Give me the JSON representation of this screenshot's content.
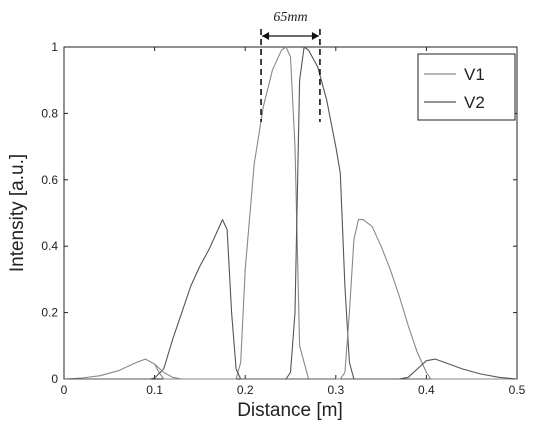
{
  "chart_data": {
    "type": "line",
    "xlabel": "Distance [m]",
    "ylabel": "Intensity [a.u.]",
    "xlim": [
      0,
      0.5
    ],
    "ylim": [
      0,
      1
    ],
    "xticks": [
      "0",
      "0.1",
      "0.2",
      "0.3",
      "0.4",
      "0.5"
    ],
    "yticks": [
      "0",
      "0.2",
      "0.4",
      "0.6",
      "0.8",
      "1"
    ],
    "grid": false,
    "legend_position": "top-right",
    "annotation": {
      "text": "65mm",
      "x_start": 0.2175,
      "x_end": 0.2825
    },
    "series": [
      {
        "name": "V1",
        "color": "#888888",
        "x": [
          0,
          0.02,
          0.04,
          0.06,
          0.08,
          0.09,
          0.1,
          0.105,
          0.11,
          0.12,
          0.13,
          0.14,
          0.15,
          0.16,
          0.17,
          0.175,
          0.18,
          0.185,
          0.19,
          0.195,
          0.2,
          0.21,
          0.22,
          0.23,
          0.24,
          0.245,
          0.25,
          0.255,
          0.26,
          0.27,
          0.28,
          0.29,
          0.3,
          0.305,
          0.31,
          0.315,
          0.32,
          0.33,
          0.34,
          0.35,
          0.36,
          0.37,
          0.38,
          0.39,
          0.4,
          0.41,
          0.42,
          0.44,
          0.46,
          0.48,
          0.5
        ],
        "y": [
          0,
          0.003,
          0.01,
          0.025,
          0.05,
          0.06,
          0.045,
          0.02,
          0,
          0,
          0,
          0,
          0,
          0,
          0,
          0,
          0,
          0,
          0,
          0.05,
          0.33,
          0.65,
          0.82,
          0.93,
          0.99,
          1.0,
          0.97,
          0.7,
          0.1,
          0,
          0,
          0,
          0,
          0,
          0,
          0,
          0,
          0,
          0,
          0,
          0,
          0,
          0,
          0,
          0,
          0,
          0,
          0,
          0,
          0,
          0
        ]
      },
      {
        "name": "V2",
        "color": "#555555",
        "x": [
          0,
          0.02,
          0.04,
          0.06,
          0.08,
          0.09,
          0.095,
          0.1,
          0.11,
          0.12,
          0.13,
          0.14,
          0.15,
          0.16,
          0.17,
          0.175,
          0.18,
          0.185,
          0.19,
          0.195,
          0.2,
          0.21,
          0.22,
          0.23,
          0.24,
          0.245,
          0.25,
          0.255,
          0.26,
          0.265,
          0.27,
          0.28,
          0.29,
          0.3,
          0.305,
          0.31,
          0.315,
          0.32,
          0.325,
          0.33,
          0.34,
          0.35,
          0.36,
          0.37,
          0.38,
          0.39,
          0.4,
          0.405,
          0.41,
          0.42,
          0.44,
          0.46,
          0.48,
          0.5
        ],
        "y": [
          0,
          0,
          0,
          0,
          0,
          0,
          0,
          0.003,
          0.03,
          0.12,
          0.2,
          0.28,
          0.34,
          0.39,
          0.45,
          0.48,
          0.45,
          0.2,
          0.03,
          0,
          0,
          0,
          0,
          0,
          0,
          0,
          0,
          0,
          0,
          0,
          0,
          0,
          0,
          0,
          0,
          0,
          0,
          0,
          0,
          0,
          0,
          0,
          0,
          0,
          0,
          0,
          0,
          0,
          0,
          0,
          0,
          0,
          0,
          0
        ]
      },
      {
        "name": "",
        "color": "#555555",
        "x": [
          0.24,
          0.245,
          0.25,
          0.255,
          0.26,
          0.265,
          0.27,
          0.28,
          0.29,
          0.3,
          0.305,
          0.31,
          0.315,
          0.32,
          0.325,
          0.33,
          0.34,
          0.35,
          0.36,
          0.37,
          0.38,
          0.39,
          0.4,
          0.41,
          0.42,
          0.44,
          0.46,
          0.48,
          0.5
        ],
        "y": [
          0,
          0,
          0.02,
          0.2,
          0.9,
          1.0,
          0.99,
          0.94,
          0.84,
          0.7,
          0.62,
          0.28,
          0.05,
          0,
          0,
          0,
          0,
          0,
          0,
          0,
          0,
          0,
          0,
          0,
          0,
          0,
          0,
          0,
          0
        ]
      },
      {
        "name": "",
        "color": "#888888",
        "x": [
          0.3,
          0.305,
          0.31,
          0.315,
          0.32,
          0.325,
          0.33,
          0.34,
          0.35,
          0.36,
          0.37,
          0.38,
          0.39,
          0.4,
          0.405,
          0.41,
          0.42,
          0.44,
          0.46,
          0.48,
          0.5
        ],
        "y": [
          0,
          0,
          0.02,
          0.2,
          0.42,
          0.48,
          0.48,
          0.46,
          0.4,
          0.33,
          0.25,
          0.16,
          0.08,
          0.02,
          0,
          0,
          0,
          0,
          0,
          0,
          0
        ]
      },
      {
        "name": "",
        "color": "#555555",
        "x": [
          0.37,
          0.38,
          0.39,
          0.4,
          0.41,
          0.42,
          0.44,
          0.46,
          0.48,
          0.5
        ],
        "y": [
          0,
          0.005,
          0.03,
          0.055,
          0.06,
          0.05,
          0.03,
          0.015,
          0.005,
          0
        ]
      },
      {
        "name": "",
        "color": "#888888",
        "x": [
          0.1,
          0.11,
          0.12,
          0.13,
          0.14,
          0.15,
          0.16,
          0.17
        ],
        "y": [
          0.045,
          0.02,
          0.005,
          0,
          0,
          0,
          0,
          0
        ]
      }
    ]
  }
}
